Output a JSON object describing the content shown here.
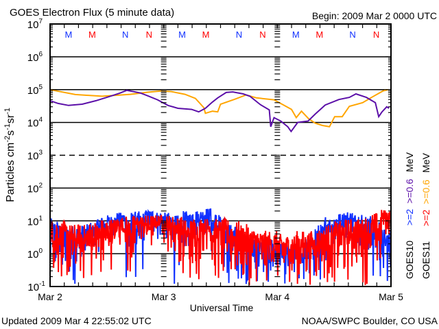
{
  "chart_data": {
    "type": "line",
    "title": "GOES Electron Flux (5 minute data)",
    "begin": "Begin: 2009 Mar 2 0000 UTC",
    "xlabel": "Universal Time",
    "ylabel": "Particles cm",
    "ylabel_parts": [
      "Particles cm",
      "-2",
      "s",
      "-1",
      "sr",
      "-1"
    ],
    "y_scale": "log",
    "ylim": [
      0.1,
      10000000
    ],
    "xlim_hours": [
      0,
      72
    ],
    "y_ticks": [
      {
        "base": "10",
        "exp": "7",
        "value": 10000000.0
      },
      {
        "base": "10",
        "exp": "6",
        "value": 1000000.0
      },
      {
        "base": "10",
        "exp": "5",
        "value": 100000.0
      },
      {
        "base": "10",
        "exp": "4",
        "value": 10000.0
      },
      {
        "base": "10",
        "exp": "3",
        "value": 1000.0
      },
      {
        "base": "10",
        "exp": "2",
        "value": 100.0
      },
      {
        "base": "10",
        "exp": "1",
        "value": 10.0
      },
      {
        "base": "10",
        "exp": "0",
        "value": 1.0
      },
      {
        "base": "10",
        "exp": "-1",
        "value": 0.1
      }
    ],
    "x_ticks": [
      {
        "label": "Mar 2",
        "hour": 0
      },
      {
        "label": "Mar 3",
        "hour": 24
      },
      {
        "label": "Mar 4",
        "hour": 48
      },
      {
        "label": "Mar 5",
        "hour": 72
      }
    ],
    "markers": [
      {
        "label": "M",
        "color": "#1030ff",
        "hour": 3.9
      },
      {
        "label": "M",
        "color": "#ff0000",
        "hour": 8.9
      },
      {
        "label": "N",
        "color": "#1030ff",
        "hour": 15.9
      },
      {
        "label": "N",
        "color": "#ff0000",
        "hour": 20.9
      },
      {
        "label": "M",
        "color": "#1030ff",
        "hour": 27.9
      },
      {
        "label": "M",
        "color": "#ff0000",
        "hour": 32.9
      },
      {
        "label": "N",
        "color": "#1030ff",
        "hour": 39.9
      },
      {
        "label": "N",
        "color": "#ff0000",
        "hour": 44.9
      },
      {
        "label": "M",
        "color": "#1030ff",
        "hour": 51.9
      },
      {
        "label": "M",
        "color": "#ff0000",
        "hour": 56.9
      },
      {
        "label": "N",
        "color": "#1030ff",
        "hour": 63.9
      },
      {
        "label": "N",
        "color": "#ff0000",
        "hour": 68.9
      }
    ],
    "legend": [
      {
        "satellite": "GOES10",
        "e2": ">=2",
        "e06": ">=0.6",
        "unit": "MeV",
        "color_e2": "#1030ff",
        "color_e06": "#5b0fa8"
      },
      {
        "satellite": "GOES11",
        "e2": ">=2",
        "e06": ">=0.6",
        "unit": "MeV",
        "color_e2": "#ff0000",
        "color_e06": "#ffa500"
      }
    ],
    "series": [
      {
        "name": "GOES11 >=0.6 MeV",
        "color": "#ffa500",
        "kind": "line",
        "hours": [
          0,
          5.3,
          11,
          17,
          20.5,
          23.4,
          25.6,
          28.5,
          30.7,
          32.5,
          32.8,
          34.3,
          35.4,
          36,
          39,
          41.4,
          43.6,
          47.3,
          51,
          52,
          53.1,
          54.6,
          56,
          57.5,
          59,
          60.1,
          61.7,
          63.2,
          66,
          68,
          70.3,
          71.4
        ],
        "values": [
          100000.0,
          71000.0,
          63000.0,
          72000.0,
          83000.0,
          91000.0,
          87000.0,
          72000.0,
          54000.0,
          28000.0,
          19000.0,
          22000.0,
          21000.0,
          36000.0,
          51000.0,
          69000.0,
          56000.0,
          49000.0,
          25000.0,
          14000.0,
          22000.0,
          13000.0,
          9500.0,
          8100.0,
          7400.0,
          15000.0,
          15000.0,
          31000.0,
          40000.0,
          59000.0,
          91000.0,
          100000.0
        ]
      },
      {
        "name": "GOES10 >=0.6 MeV",
        "color": "#5b0fa8",
        "kind": "line",
        "hours": [
          0,
          1.7,
          3.9,
          6.8,
          9.7,
          12.6,
          14.7,
          16.2,
          17.6,
          19.1,
          20.5,
          22.7,
          24.9,
          27,
          29.9,
          31.4,
          32.8,
          34.3,
          35.4,
          37.2,
          38.6,
          40.8,
          42.2,
          44.4,
          46.3,
          46.6,
          47.3,
          48.7,
          50.2,
          50.9,
          52.3,
          54.5,
          56,
          58.1,
          61,
          63.2,
          64.6,
          66.8,
          68.7,
          69.4,
          70.1,
          71.1,
          71.6
        ],
        "values": [
          46000.0,
          38000.0,
          33000.0,
          36000.0,
          46000.0,
          62000.0,
          78000.0,
          95000.0,
          87000.0,
          79000.0,
          66000.0,
          49000.0,
          33000.0,
          27000.0,
          25000.0,
          21000.0,
          27000.0,
          42000.0,
          56000.0,
          82000.0,
          85000.0,
          74000.0,
          63000.0,
          35000.0,
          24000.0,
          7400.0,
          14000.0,
          11000.0,
          7400.0,
          5300.0,
          10000.0,
          11000.0,
          18000.0,
          34000.0,
          50000.0,
          58000.0,
          74000.0,
          58000.0,
          40000.0,
          15000.0,
          21000.0,
          30000.0,
          27000.0
        ]
      },
      {
        "name": "GOES10 >=2 MeV",
        "color": "#1030ff",
        "kind": "noisy",
        "bin_hours": 2,
        "max": [
          12,
          8,
          8,
          8,
          10,
          14,
          15,
          18,
          20,
          20,
          22,
          20,
          18,
          15,
          20,
          22,
          25,
          20,
          12,
          8,
          5,
          3,
          3,
          3,
          2,
          2,
          2,
          3,
          8,
          15,
          18,
          20,
          18,
          15,
          12,
          6
        ],
        "min": [
          0.1,
          0.1,
          0.1,
          0.1,
          0.3,
          1,
          2,
          3,
          0.1,
          0.1,
          3,
          2,
          1,
          0.1,
          1,
          2,
          3,
          0.5,
          0.1,
          0.1,
          0.1,
          0.1,
          0.1,
          0.1,
          0.1,
          0.1,
          0.1,
          0.1,
          0.1,
          0.5,
          1,
          2,
          1,
          0.3,
          0.1,
          0.1
        ]
      },
      {
        "name": "GOES11 >=2 MeV",
        "color": "#ff0000",
        "kind": "noisy",
        "bin_hours": 2,
        "max": [
          12,
          10,
          8,
          8,
          10,
          12,
          12,
          14,
          15,
          14,
          15,
          15,
          15,
          14,
          12,
          13,
          12,
          12,
          12,
          10,
          8,
          6,
          5,
          5,
          4,
          4,
          5,
          5,
          6,
          8,
          10,
          12,
          12,
          14,
          18,
          22
        ],
        "min": [
          0.1,
          0.1,
          0.1,
          0.1,
          0.1,
          0.1,
          0.3,
          1,
          0.1,
          2,
          1,
          3,
          1,
          0.5,
          0.1,
          0.1,
          1,
          0.1,
          0.1,
          0.1,
          0.1,
          0.1,
          0.1,
          0.1,
          0.1,
          0.1,
          0.1,
          0.1,
          0.1,
          0.1,
          0.1,
          0.1,
          0.3,
          0.1,
          0.2,
          3
        ]
      }
    ]
  },
  "footer": {
    "updated": "Updated 2009 Mar  4 22:55:02 UTC",
    "source": "NOAA/SWPC Boulder, CO USA"
  }
}
